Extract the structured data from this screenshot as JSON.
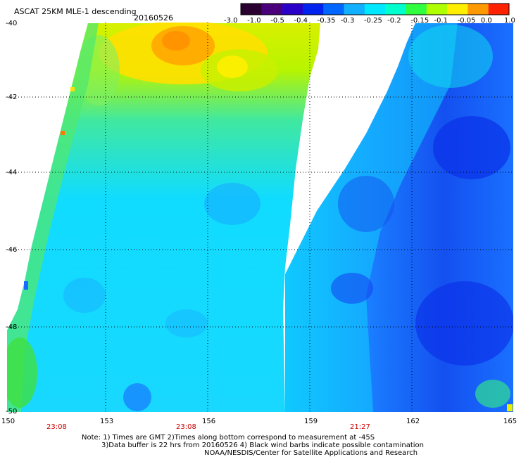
{
  "header": {
    "title": "ASCAT 25KM MLE-1 descending",
    "date": "20160526"
  },
  "colorbar": {
    "labels": [
      "-3.0",
      "-1.0",
      "-0.5",
      "-0.4",
      "-0.35",
      "-0.3",
      "-0.25",
      "-0.2",
      "-0.15",
      "-0.1",
      "-0.05",
      "0.0",
      "1.0"
    ],
    "colors": [
      "#2b0030",
      "#4a007a",
      "#2a00c8",
      "#0022ee",
      "#0066ff",
      "#10b0ff",
      "#00e8ff",
      "#00ffcc",
      "#30ff40",
      "#b0ff00",
      "#ffee00",
      "#ff9900",
      "#ff2200"
    ]
  },
  "map": {
    "lat_labels": [
      "-40",
      "-42",
      "-44",
      "-46",
      "-48",
      "-50"
    ],
    "lon_labels": [
      "150",
      "153",
      "156",
      "159",
      "162",
      "165"
    ],
    "pass_times": [
      "23:08",
      "23:08",
      "21:27"
    ]
  },
  "footer": {
    "note1": "Note: 1) Times are GMT 2)Times along bottom correspond to measurement at -45S",
    "note2": "3)Data buffer is 22 hrs from 20160526 4) Black wind barbs indicate possible contamination",
    "note3": "NOAA/NESDIS/Center for Satellite Applications and Research"
  }
}
